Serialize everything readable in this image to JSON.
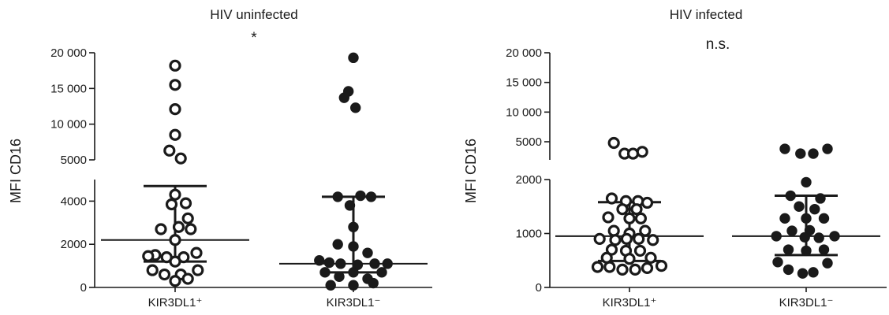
{
  "chart_data": [
    {
      "type": "scatter",
      "title": "HIV uninfected",
      "significance": "*",
      "ylabel": "MFI CD16",
      "axis_break": true,
      "y_lower": {
        "range": [
          0,
          5000
        ],
        "ticks": [
          0,
          2000,
          4000
        ],
        "tick_labels": [
          "0",
          "2000",
          "4000"
        ]
      },
      "y_upper": {
        "range": [
          5000,
          20000
        ],
        "ticks": [
          5000,
          10000,
          15000,
          20000
        ],
        "tick_labels": [
          "5000",
          "10 000",
          "15 000",
          "20 000"
        ]
      },
      "categories": [
        "KIR3DL1⁺",
        "KIR3DL1⁻"
      ],
      "series": [
        {
          "category_index": 0,
          "marker": "open",
          "median": 2200,
          "q1": 1200,
          "q3": 4700,
          "points": [
            [
              0.0,
              18200
            ],
            [
              0.0,
              15500
            ],
            [
              0.0,
              12100
            ],
            [
              0.0,
              8500
            ],
            [
              -0.08,
              6300
            ],
            [
              0.08,
              5200
            ],
            [
              0.0,
              4300
            ],
            [
              0.15,
              3900
            ],
            [
              -0.05,
              3850
            ],
            [
              0.18,
              3200
            ],
            [
              0.05,
              2800
            ],
            [
              -0.2,
              2700
            ],
            [
              0.22,
              2700
            ],
            [
              0.0,
              2200
            ],
            [
              -0.28,
              1500
            ],
            [
              -0.38,
              1450
            ],
            [
              -0.12,
              1400
            ],
            [
              0.12,
              1400
            ],
            [
              0.3,
              1600
            ],
            [
              0.0,
              1200
            ],
            [
              -0.32,
              800
            ],
            [
              -0.15,
              600
            ],
            [
              0.08,
              600
            ],
            [
              0.32,
              800
            ],
            [
              0.0,
              300
            ],
            [
              0.18,
              400
            ]
          ]
        },
        {
          "category_index": 1,
          "marker": "filled",
          "median": 1100,
          "q1": 700,
          "q3": 4200,
          "points": [
            [
              0.0,
              19300
            ],
            [
              -0.07,
              14600
            ],
            [
              -0.13,
              13700
            ],
            [
              0.03,
              12300
            ],
            [
              -0.22,
              4200
            ],
            [
              0.25,
              4200
            ],
            [
              0.1,
              4250
            ],
            [
              -0.05,
              3800
            ],
            [
              0.0,
              2800
            ],
            [
              -0.22,
              2000
            ],
            [
              0.0,
              1900
            ],
            [
              0.2,
              1600
            ],
            [
              -0.48,
              1250
            ],
            [
              -0.34,
              1150
            ],
            [
              -0.18,
              1100
            ],
            [
              0.06,
              1050
            ],
            [
              0.3,
              1100
            ],
            [
              0.48,
              1100
            ],
            [
              -0.4,
              700
            ],
            [
              0.0,
              700
            ],
            [
              0.4,
              700
            ],
            [
              -0.2,
              500
            ],
            [
              0.2,
              400
            ],
            [
              -0.32,
              100
            ],
            [
              0.0,
              100
            ],
            [
              0.28,
              200
            ]
          ]
        }
      ]
    },
    {
      "type": "scatter",
      "title": "HIV infected",
      "significance": "n.s.",
      "ylabel": "MFI CD16",
      "axis_break": true,
      "y_lower": {
        "range": [
          0,
          2000
        ],
        "ticks": [
          0,
          1000,
          2000
        ],
        "tick_labels": [
          "0",
          "1000",
          "2000"
        ]
      },
      "y_upper": {
        "range": [
          2000,
          20000
        ],
        "ticks": [
          5000,
          10000,
          15000,
          20000
        ],
        "tick_labels": [
          "5000",
          "10 000",
          "15 000",
          "20 000"
        ]
      },
      "categories": [
        "KIR3DL1⁺",
        "KIR3DL1⁻"
      ],
      "series": [
        {
          "category_index": 0,
          "marker": "open",
          "median": 950,
          "q1": 490,
          "q3": 1580,
          "points": [
            [
              -0.22,
              4800
            ],
            [
              -0.07,
              3000
            ],
            [
              0.05,
              3000
            ],
            [
              0.18,
              3300
            ],
            [
              -0.25,
              1650
            ],
            [
              -0.05,
              1600
            ],
            [
              0.12,
              1600
            ],
            [
              0.25,
              1570
            ],
            [
              -0.1,
              1450
            ],
            [
              0.1,
              1450
            ],
            [
              -0.3,
              1300
            ],
            [
              0.0,
              1280
            ],
            [
              0.16,
              1280
            ],
            [
              -0.22,
              1050
            ],
            [
              0.0,
              1000
            ],
            [
              0.22,
              1050
            ],
            [
              -0.42,
              900
            ],
            [
              -0.2,
              880
            ],
            [
              -0.04,
              900
            ],
            [
              0.13,
              900
            ],
            [
              0.33,
              880
            ],
            [
              -0.25,
              700
            ],
            [
              -0.05,
              680
            ],
            [
              0.15,
              680
            ],
            [
              -0.32,
              550
            ],
            [
              0.0,
              530
            ],
            [
              0.3,
              550
            ],
            [
              -0.45,
              380
            ],
            [
              -0.28,
              380
            ],
            [
              -0.1,
              330
            ],
            [
              0.08,
              330
            ],
            [
              0.25,
              360
            ],
            [
              0.45,
              400
            ]
          ]
        },
        {
          "category_index": 1,
          "marker": "filled",
          "median": 950,
          "q1": 600,
          "q3": 1700,
          "points": [
            [
              -0.3,
              3800
            ],
            [
              -0.08,
              3000
            ],
            [
              0.1,
              3000
            ],
            [
              0.3,
              3800
            ],
            [
              0.0,
              1950
            ],
            [
              -0.22,
              1700
            ],
            [
              0.2,
              1650
            ],
            [
              -0.1,
              1500
            ],
            [
              0.12,
              1450
            ],
            [
              -0.3,
              1280
            ],
            [
              0.0,
              1280
            ],
            [
              0.25,
              1280
            ],
            [
              -0.2,
              1050
            ],
            [
              0.05,
              1060
            ],
            [
              -0.42,
              950
            ],
            [
              -0.02,
              930
            ],
            [
              0.18,
              920
            ],
            [
              0.4,
              950
            ],
            [
              -0.25,
              700
            ],
            [
              0.0,
              680
            ],
            [
              0.25,
              700
            ],
            [
              -0.4,
              470
            ],
            [
              0.3,
              450
            ],
            [
              -0.25,
              330
            ],
            [
              0.1,
              280
            ],
            [
              -0.05,
              260
            ]
          ]
        }
      ]
    }
  ]
}
